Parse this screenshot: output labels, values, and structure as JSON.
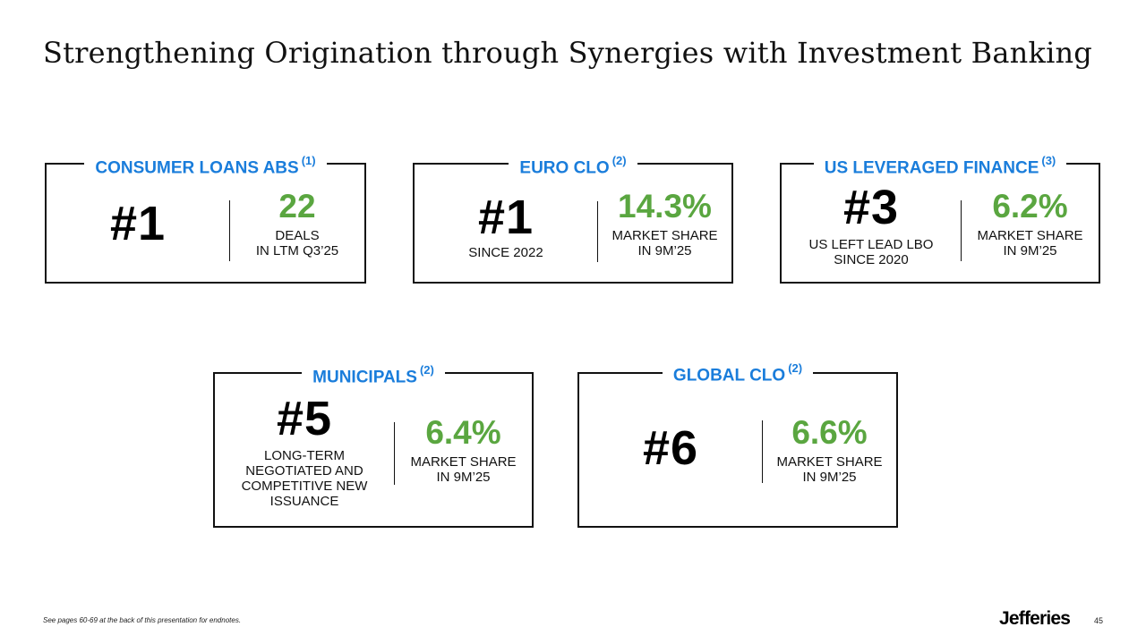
{
  "title": "Strengthening Origination through Synergies with Investment Banking",
  "cards": {
    "consumer_loans": {
      "label": "CONSUMER LOANS ABS",
      "note": "(1)",
      "rank": "#1",
      "rank_caption": "",
      "stat": "22",
      "stat_caption_1": "DEALS",
      "stat_caption_2": "IN LTM Q3’25"
    },
    "euro_clo": {
      "label": "EURO CLO",
      "note": "(2)",
      "rank": "#1",
      "rank_caption": "SINCE 2022",
      "stat": "14.3%",
      "stat_caption_1": "MARKET SHARE",
      "stat_caption_2": "IN 9M’25"
    },
    "us_leveraged_finance": {
      "label": "US LEVERAGED FINANCE",
      "note": "(3)",
      "rank": "#3",
      "rank_caption_1": "US LEFT LEAD LBO",
      "rank_caption_2": "SINCE 2020",
      "stat": "6.2%",
      "stat_caption_1": "MARKET SHARE",
      "stat_caption_2": "IN 9M’25"
    },
    "municipals": {
      "label": "MUNICIPALS",
      "note": "(2)",
      "rank": "#5",
      "rank_caption_1": "LONG-TERM",
      "rank_caption_2": "NEGOTIATED AND",
      "rank_caption_3": "COMPETITIVE NEW",
      "rank_caption_4": "ISSUANCE",
      "stat": "6.4%",
      "stat_caption_1": "MARKET SHARE",
      "stat_caption_2": "IN 9M’25"
    },
    "global_clo": {
      "label": "GLOBAL CLO",
      "note": "(2)",
      "rank": "#6",
      "stat": "6.6%",
      "stat_caption_1": "MARKET SHARE",
      "stat_caption_2": "IN 9M’25"
    }
  },
  "footnote": "See pages 60-69 at the back of this presentation for endnotes.",
  "logo": "Jefferies",
  "page_number": "45",
  "colors": {
    "accent_blue": "#1a7ddb",
    "stat_green": "#5aa640"
  }
}
